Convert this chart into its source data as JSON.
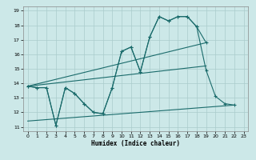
{
  "xlabel": "Humidex (Indice chaleur)",
  "xlim": [
    -0.5,
    23.5
  ],
  "ylim": [
    10.7,
    19.3
  ],
  "xticks": [
    0,
    1,
    2,
    3,
    4,
    5,
    6,
    7,
    8,
    9,
    10,
    11,
    12,
    13,
    14,
    15,
    16,
    17,
    18,
    19,
    20,
    21,
    22,
    23
  ],
  "yticks": [
    11,
    12,
    13,
    14,
    15,
    16,
    17,
    18,
    19
  ],
  "bg_color": "#cce8e8",
  "grid_color": "#aacccc",
  "line_color": "#1a6b6b",
  "line1_x": [
    0,
    1,
    2,
    3,
    4,
    5,
    6,
    7,
    8,
    9,
    10,
    11,
    12,
    13,
    14,
    15,
    16,
    17,
    18,
    19
  ],
  "line1_y": [
    13.8,
    13.7,
    13.7,
    11.1,
    13.7,
    13.3,
    12.6,
    12.0,
    11.9,
    13.7,
    16.2,
    16.5,
    14.8,
    17.2,
    18.6,
    18.3,
    18.6,
    18.6,
    17.9,
    16.8
  ],
  "line2_x": [
    0,
    19
  ],
  "line2_y": [
    13.8,
    16.8
  ],
  "line3_x": [
    0,
    19
  ],
  "line3_y": [
    13.8,
    15.2
  ],
  "line4_x": [
    0,
    1,
    2,
    3,
    4,
    5,
    6,
    7,
    8,
    9,
    10,
    11,
    12,
    13,
    14,
    15,
    16,
    17,
    18,
    19,
    20,
    21,
    22
  ],
  "line4_y": [
    13.8,
    13.7,
    13.7,
    11.1,
    13.7,
    13.3,
    12.6,
    12.0,
    11.9,
    13.7,
    16.2,
    16.5,
    14.8,
    17.2,
    18.6,
    18.3,
    18.6,
    18.6,
    17.9,
    14.9,
    13.1,
    12.6,
    12.5
  ],
  "line5_x": [
    0,
    22
  ],
  "line5_y": [
    11.4,
    12.5
  ]
}
